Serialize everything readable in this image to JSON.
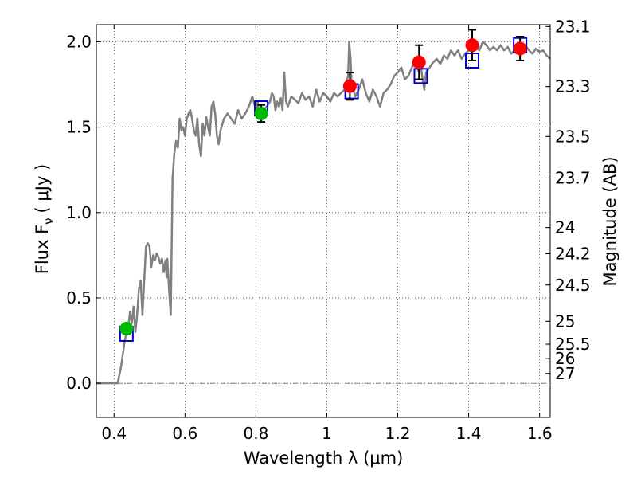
{
  "chart_data": {
    "type": "scatter",
    "title": "",
    "xlabel": "Wavelength  λ (μm)",
    "ylabel": "Flux  F",
    "ylabel_sub": "ν",
    "ylabel_unit": "( μJy )",
    "y2label": "Magnitude (AB)",
    "xlim": [
      0.35,
      1.63
    ],
    "ylim": [
      -0.2,
      2.1
    ],
    "grid": true,
    "x_ticks": [
      {
        "value": 0.4,
        "label": "0.4"
      },
      {
        "value": 0.6,
        "label": "0.6"
      },
      {
        "value": 0.8,
        "label": "0.8"
      },
      {
        "value": 1.0,
        "label": "1"
      },
      {
        "value": 1.2,
        "label": "1.2"
      },
      {
        "value": 1.4,
        "label": "1.4"
      },
      {
        "value": 1.6,
        "label": "1.6"
      }
    ],
    "y_ticks": [
      {
        "value": 0.0,
        "label": "0.0"
      },
      {
        "value": 0.5,
        "label": "0.5"
      },
      {
        "value": 1.0,
        "label": "1.0"
      },
      {
        "value": 1.5,
        "label": "1.5"
      },
      {
        "value": 2.0,
        "label": "2.0"
      }
    ],
    "y2_ticks": [
      {
        "value": 23.1,
        "label": "23.1"
      },
      {
        "value": 23.3,
        "label": "23.3"
      },
      {
        "value": 23.5,
        "label": "23.5"
      },
      {
        "value": 23.7,
        "label": "23.7"
      },
      {
        "value": 24.0,
        "label": "24"
      },
      {
        "value": 24.2,
        "label": "24.2"
      },
      {
        "value": 24.5,
        "label": "24.5"
      },
      {
        "value": 25.0,
        "label": "25"
      },
      {
        "value": 25.5,
        "label": "25.5"
      },
      {
        "value": 26.0,
        "label": "26"
      },
      {
        "value": 27.0,
        "label": "27"
      }
    ],
    "series": [
      {
        "kind": "line",
        "color": "#808080",
        "points": [
          [
            0.35,
            0.0
          ],
          [
            0.39,
            0.0
          ],
          [
            0.41,
            0.0
          ],
          [
            0.42,
            0.1
          ],
          [
            0.43,
            0.25
          ],
          [
            0.44,
            0.33
          ],
          [
            0.445,
            0.42
          ],
          [
            0.45,
            0.35
          ],
          [
            0.455,
            0.45
          ],
          [
            0.46,
            0.3
          ],
          [
            0.465,
            0.4
          ],
          [
            0.47,
            0.55
          ],
          [
            0.475,
            0.6
          ],
          [
            0.48,
            0.4
          ],
          [
            0.485,
            0.6
          ],
          [
            0.49,
            0.8
          ],
          [
            0.495,
            0.82
          ],
          [
            0.5,
            0.8
          ],
          [
            0.505,
            0.68
          ],
          [
            0.51,
            0.75
          ],
          [
            0.515,
            0.72
          ],
          [
            0.52,
            0.76
          ],
          [
            0.525,
            0.74
          ],
          [
            0.53,
            0.7
          ],
          [
            0.535,
            0.73
          ],
          [
            0.54,
            0.65
          ],
          [
            0.545,
            0.72
          ],
          [
            0.548,
            0.62
          ],
          [
            0.55,
            0.73
          ],
          [
            0.555,
            0.55
          ],
          [
            0.56,
            0.4
          ],
          [
            0.565,
            1.2
          ],
          [
            0.57,
            1.35
          ],
          [
            0.575,
            1.42
          ],
          [
            0.58,
            1.38
          ],
          [
            0.585,
            1.55
          ],
          [
            0.59,
            1.48
          ],
          [
            0.595,
            1.5
          ],
          [
            0.6,
            1.45
          ],
          [
            0.605,
            1.55
          ],
          [
            0.61,
            1.58
          ],
          [
            0.615,
            1.6
          ],
          [
            0.62,
            1.55
          ],
          [
            0.625,
            1.48
          ],
          [
            0.63,
            1.45
          ],
          [
            0.635,
            1.55
          ],
          [
            0.64,
            1.4
          ],
          [
            0.645,
            1.33
          ],
          [
            0.65,
            1.52
          ],
          [
            0.655,
            1.45
          ],
          [
            0.66,
            1.56
          ],
          [
            0.665,
            1.5
          ],
          [
            0.67,
            1.45
          ],
          [
            0.675,
            1.62
          ],
          [
            0.68,
            1.65
          ],
          [
            0.685,
            1.58
          ],
          [
            0.69,
            1.45
          ],
          [
            0.695,
            1.4
          ],
          [
            0.7,
            1.48
          ],
          [
            0.71,
            1.55
          ],
          [
            0.72,
            1.58
          ],
          [
            0.73,
            1.55
          ],
          [
            0.74,
            1.52
          ],
          [
            0.75,
            1.6
          ],
          [
            0.76,
            1.55
          ],
          [
            0.77,
            1.58
          ],
          [
            0.78,
            1.62
          ],
          [
            0.79,
            1.68
          ],
          [
            0.8,
            1.6
          ],
          [
            0.805,
            1.65
          ],
          [
            0.81,
            1.58
          ],
          [
            0.815,
            1.62
          ],
          [
            0.82,
            1.6
          ],
          [
            0.83,
            1.62
          ],
          [
            0.84,
            1.65
          ],
          [
            0.845,
            1.7
          ],
          [
            0.85,
            1.68
          ],
          [
            0.855,
            1.6
          ],
          [
            0.86,
            1.65
          ],
          [
            0.865,
            1.62
          ],
          [
            0.87,
            1.67
          ],
          [
            0.875,
            1.6
          ],
          [
            0.88,
            1.82
          ],
          [
            0.885,
            1.65
          ],
          [
            0.89,
            1.62
          ],
          [
            0.9,
            1.68
          ],
          [
            0.91,
            1.66
          ],
          [
            0.92,
            1.64
          ],
          [
            0.93,
            1.7
          ],
          [
            0.94,
            1.66
          ],
          [
            0.95,
            1.68
          ],
          [
            0.96,
            1.62
          ],
          [
            0.97,
            1.72
          ],
          [
            0.98,
            1.65
          ],
          [
            0.99,
            1.7
          ],
          [
            1.0,
            1.68
          ],
          [
            1.01,
            1.65
          ],
          [
            1.02,
            1.7
          ],
          [
            1.03,
            1.68
          ],
          [
            1.04,
            1.7
          ],
          [
            1.05,
            1.72
          ],
          [
            1.06,
            1.8
          ],
          [
            1.063,
            2.0
          ],
          [
            1.067,
            1.9
          ],
          [
            1.07,
            1.75
          ],
          [
            1.08,
            1.68
          ],
          [
            1.09,
            1.72
          ],
          [
            1.1,
            1.78
          ],
          [
            1.11,
            1.7
          ],
          [
            1.12,
            1.65
          ],
          [
            1.13,
            1.72
          ],
          [
            1.14,
            1.68
          ],
          [
            1.15,
            1.62
          ],
          [
            1.16,
            1.7
          ],
          [
            1.17,
            1.72
          ],
          [
            1.18,
            1.75
          ],
          [
            1.19,
            1.8
          ],
          [
            1.2,
            1.82
          ],
          [
            1.21,
            1.85
          ],
          [
            1.22,
            1.78
          ],
          [
            1.23,
            1.8
          ],
          [
            1.24,
            1.85
          ],
          [
            1.25,
            1.88
          ],
          [
            1.26,
            1.82
          ],
          [
            1.265,
            1.86
          ],
          [
            1.27,
            1.78
          ],
          [
            1.275,
            1.72
          ],
          [
            1.28,
            1.82
          ],
          [
            1.29,
            1.85
          ],
          [
            1.3,
            1.88
          ],
          [
            1.31,
            1.9
          ],
          [
            1.32,
            1.87
          ],
          [
            1.33,
            1.92
          ],
          [
            1.34,
            1.9
          ],
          [
            1.35,
            1.95
          ],
          [
            1.36,
            1.92
          ],
          [
            1.37,
            1.95
          ],
          [
            1.38,
            1.9
          ],
          [
            1.39,
            1.93
          ],
          [
            1.4,
            1.95
          ],
          [
            1.41,
            1.98
          ],
          [
            1.42,
            1.97
          ],
          [
            1.43,
            1.95
          ],
          [
            1.44,
            2.0
          ],
          [
            1.45,
            1.98
          ],
          [
            1.46,
            1.95
          ],
          [
            1.47,
            1.97
          ],
          [
            1.48,
            1.95
          ],
          [
            1.49,
            1.98
          ],
          [
            1.5,
            1.95
          ],
          [
            1.51,
            1.97
          ],
          [
            1.52,
            1.93
          ],
          [
            1.53,
            1.95
          ],
          [
            1.54,
            1.97
          ],
          [
            1.55,
            1.95
          ],
          [
            1.56,
            1.98
          ],
          [
            1.57,
            1.95
          ],
          [
            1.58,
            1.93
          ],
          [
            1.59,
            1.96
          ],
          [
            1.6,
            1.94
          ],
          [
            1.61,
            1.95
          ],
          [
            1.62,
            1.92
          ],
          [
            1.63,
            1.9
          ]
        ]
      },
      {
        "kind": "model_boxes",
        "color": "#0000cc",
        "points": [
          [
            0.435,
            0.29
          ],
          [
            0.815,
            1.61
          ],
          [
            1.07,
            1.71
          ],
          [
            1.265,
            1.8
          ],
          [
            1.41,
            1.89
          ],
          [
            1.545,
            1.98
          ]
        ]
      },
      {
        "kind": "observed_ir",
        "color": "#ff0000",
        "points": [
          {
            "x": 1.065,
            "y": 1.74,
            "err": 0.08
          },
          {
            "x": 1.26,
            "y": 1.88,
            "err": 0.1
          },
          {
            "x": 1.41,
            "y": 1.98,
            "err": 0.09
          },
          {
            "x": 1.545,
            "y": 1.96,
            "err": 0.07
          }
        ]
      },
      {
        "kind": "observed_opt",
        "color": "#00bb00",
        "points": [
          {
            "x": 0.435,
            "y": 0.32,
            "err": 0.03
          },
          {
            "x": 0.815,
            "y": 1.58,
            "err": 0.05
          }
        ]
      }
    ]
  }
}
